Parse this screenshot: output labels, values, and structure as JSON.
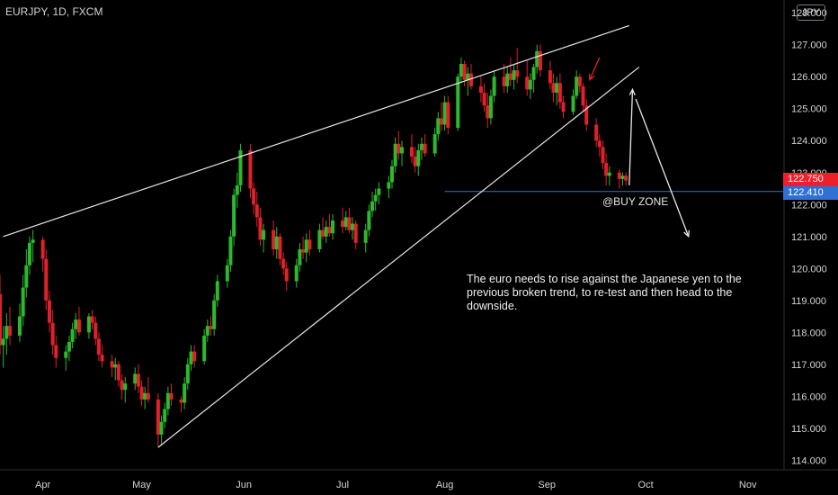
{
  "header": {
    "symbol_title": "EURJPY, 1D, FXCM",
    "currency": "JPY"
  },
  "price_tags": {
    "last": "122.750",
    "level": "122.410"
  },
  "annotations": {
    "zone_label": "@BUY ZONE",
    "note": "The euro needs to rise against the Japanese yen to the previous broken trend, to re-test and then head to the downside."
  },
  "colors": {
    "up": "#2db82d",
    "down": "#e0202a",
    "line": "#e8e8e8",
    "level": "#3a6fd8",
    "background": "#000000"
  },
  "chart_data": {
    "type": "candlestick",
    "ylim": [
      113.7,
      128.4
    ],
    "y_ticks": [
      "114.000",
      "115.000",
      "116.000",
      "117.000",
      "118.000",
      "119.000",
      "120.000",
      "121.000",
      "122.000",
      "123.000",
      "124.000",
      "125.000",
      "126.000",
      "127.000",
      "128.000"
    ],
    "x_ticks": [
      "Apr",
      "May",
      "Jun",
      "Jul",
      "Aug",
      "Sep",
      "Oct",
      "Nov"
    ],
    "x_range": [
      "2019-03-19",
      "2019-11-12"
    ],
    "horizontal_level": 122.41,
    "trendlines": [
      {
        "name": "upper",
        "from": [
          "2019-03-20",
          121.0
        ],
        "to": [
          "2019-09-26",
          127.6
        ]
      },
      {
        "name": "lower",
        "from": [
          "2019-05-06",
          114.4
        ],
        "to": [
          "2019-09-29",
          126.3
        ]
      },
      {
        "name": "level",
        "from": [
          "2019-08-01",
          122.41
        ],
        "to": [
          "2019-11-12",
          122.41
        ]
      }
    ],
    "arrows": [
      {
        "name": "small-red",
        "from": [
          "2019-09-17",
          126.6
        ],
        "to": [
          "2019-09-14",
          125.9
        ]
      },
      {
        "name": "up",
        "from": [
          "2019-09-26",
          122.6
        ],
        "to": [
          "2019-09-27",
          125.6
        ]
      },
      {
        "name": "down",
        "from": [
          "2019-09-28",
          125.3
        ],
        "to": [
          "2019-10-14",
          121.0
        ]
      }
    ],
    "candles": [
      [
        "2019-03-18",
        117.5,
        119.7,
        116.8,
        119.2
      ],
      [
        "2019-03-19",
        119.2,
        119.8,
        117.3,
        117.6
      ],
      [
        "2019-03-20",
        117.6,
        118.2,
        116.9,
        117.8
      ],
      [
        "2019-03-21",
        117.8,
        118.6,
        117.3,
        118.2
      ],
      [
        "2019-03-22",
        118.2,
        118.8,
        117.6,
        117.9
      ],
      [
        "2019-03-25",
        117.9,
        118.9,
        117.7,
        118.5
      ],
      [
        "2019-03-26",
        118.5,
        119.8,
        118.2,
        119.4
      ],
      [
        "2019-03-27",
        119.4,
        120.6,
        119.1,
        120.1
      ],
      [
        "2019-03-28",
        120.1,
        121.0,
        119.8,
        120.8
      ],
      [
        "2019-03-29",
        120.8,
        121.2,
        120.2,
        120.9
      ],
      [
        "2019-04-01",
        120.9,
        121.0,
        119.9,
        120.3
      ],
      [
        "2019-04-02",
        120.3,
        120.6,
        118.7,
        119.0
      ],
      [
        "2019-04-03",
        119.0,
        119.3,
        118.0,
        118.3
      ],
      [
        "2019-04-04",
        118.3,
        118.7,
        117.3,
        117.6
      ],
      [
        "2019-04-05",
        117.6,
        117.9,
        116.9,
        117.2
      ],
      [
        "2019-04-08",
        117.2,
        117.6,
        116.8,
        117.4
      ],
      [
        "2019-04-09",
        117.4,
        117.9,
        117.1,
        117.7
      ],
      [
        "2019-04-10",
        117.7,
        118.3,
        117.5,
        118.1
      ],
      [
        "2019-04-11",
        118.1,
        118.6,
        117.8,
        118.4
      ],
      [
        "2019-04-12",
        118.4,
        118.8,
        117.9,
        118.0
      ],
      [
        "2019-04-15",
        118.0,
        118.6,
        117.8,
        118.5
      ],
      [
        "2019-04-16",
        118.5,
        118.7,
        118.1,
        118.3
      ],
      [
        "2019-04-17",
        118.3,
        118.5,
        117.6,
        117.8
      ],
      [
        "2019-04-18",
        117.8,
        118.0,
        117.1,
        117.3
      ],
      [
        "2019-04-19",
        117.3,
        117.6,
        116.9,
        117.1
      ],
      [
        "2019-04-22",
        117.1,
        117.3,
        116.6,
        116.9
      ],
      [
        "2019-04-23",
        116.9,
        117.2,
        116.5,
        117.0
      ],
      [
        "2019-04-24",
        117.0,
        117.1,
        116.3,
        116.5
      ],
      [
        "2019-04-25",
        116.5,
        116.7,
        115.9,
        116.2
      ],
      [
        "2019-04-26",
        116.2,
        116.6,
        115.8,
        116.4
      ],
      [
        "2019-04-29",
        116.4,
        116.9,
        116.2,
        116.7
      ],
      [
        "2019-04-30",
        116.7,
        117.0,
        116.1,
        116.3
      ],
      [
        "2019-05-01",
        116.3,
        116.5,
        115.7,
        115.9
      ],
      [
        "2019-05-02",
        115.9,
        116.3,
        115.6,
        116.1
      ],
      [
        "2019-05-03",
        116.1,
        116.6,
        115.8,
        115.9
      ],
      [
        "2019-05-06",
        115.9,
        116.1,
        114.4,
        114.8
      ],
      [
        "2019-05-07",
        114.8,
        115.4,
        114.5,
        115.2
      ],
      [
        "2019-05-08",
        115.2,
        115.8,
        115.0,
        115.6
      ],
      [
        "2019-05-09",
        115.6,
        116.3,
        115.4,
        116.1
      ],
      [
        "2019-05-10",
        116.1,
        116.4,
        115.7,
        115.9
      ],
      [
        "2019-05-13",
        115.9,
        116.0,
        115.5,
        115.8
      ],
      [
        "2019-05-14",
        115.8,
        116.6,
        115.6,
        116.4
      ],
      [
        "2019-05-15",
        116.4,
        117.2,
        116.2,
        117.0
      ],
      [
        "2019-05-16",
        117.0,
        117.6,
        116.8,
        117.4
      ],
      [
        "2019-05-17",
        117.4,
        117.6,
        116.9,
        117.1
      ],
      [
        "2019-05-20",
        117.1,
        118.1,
        117.0,
        117.9
      ],
      [
        "2019-05-21",
        117.9,
        118.4,
        117.7,
        118.2
      ],
      [
        "2019-05-22",
        118.2,
        118.5,
        117.9,
        118.1
      ],
      [
        "2019-05-23",
        118.1,
        119.2,
        117.9,
        119.0
      ],
      [
        "2019-05-24",
        119.0,
        119.8,
        118.8,
        119.6
      ],
      [
        "2019-05-27",
        119.6,
        120.3,
        119.4,
        120.1
      ],
      [
        "2019-05-28",
        120.1,
        121.2,
        119.9,
        121.0
      ],
      [
        "2019-05-29",
        121.0,
        122.5,
        120.7,
        122.3
      ],
      [
        "2019-05-30",
        122.3,
        123.0,
        121.9,
        122.6
      ],
      [
        "2019-05-31",
        122.6,
        123.9,
        122.4,
        123.7
      ],
      [
        "2019-06-03",
        123.7,
        123.9,
        122.2,
        122.5
      ],
      [
        "2019-06-04",
        122.5,
        122.7,
        121.7,
        122.0
      ],
      [
        "2019-06-05",
        122.0,
        122.4,
        121.3,
        121.6
      ],
      [
        "2019-06-06",
        121.6,
        121.9,
        120.7,
        120.9
      ],
      [
        "2019-06-07",
        120.9,
        121.4,
        120.5,
        121.2
      ],
      [
        "2019-06-10",
        121.2,
        121.5,
        120.4,
        120.6
      ],
      [
        "2019-06-11",
        120.6,
        121.3,
        120.3,
        121.0
      ],
      [
        "2019-06-12",
        121.0,
        121.1,
        120.1,
        120.3
      ],
      [
        "2019-06-13",
        120.3,
        120.5,
        119.8,
        120.0
      ],
      [
        "2019-06-14",
        120.0,
        120.2,
        119.3,
        119.6
      ],
      [
        "2019-06-17",
        119.6,
        120.3,
        119.4,
        120.1
      ],
      [
        "2019-06-18",
        120.1,
        120.8,
        119.9,
        120.6
      ],
      [
        "2019-06-19",
        120.6,
        121.0,
        120.3,
        120.5
      ],
      [
        "2019-06-20",
        120.5,
        121.1,
        120.2,
        120.9
      ],
      [
        "2019-06-21",
        120.9,
        121.2,
        120.4,
        120.6
      ],
      [
        "2019-06-24",
        120.6,
        121.4,
        120.5,
        121.2
      ],
      [
        "2019-06-25",
        121.2,
        121.6,
        120.9,
        121.0
      ],
      [
        "2019-06-26",
        121.0,
        121.5,
        120.8,
        121.3
      ],
      [
        "2019-06-27",
        121.3,
        121.7,
        121.0,
        121.1
      ],
      [
        "2019-06-28",
        121.1,
        121.7,
        120.9,
        121.5
      ],
      [
        "2019-07-01",
        121.5,
        121.9,
        121.1,
        121.3
      ],
      [
        "2019-07-02",
        121.3,
        121.8,
        121.2,
        121.6
      ],
      [
        "2019-07-03",
        121.6,
        121.9,
        121.1,
        121.2
      ],
      [
        "2019-07-04",
        121.2,
        121.6,
        120.9,
        121.4
      ],
      [
        "2019-07-05",
        121.4,
        121.5,
        120.6,
        120.8
      ],
      [
        "2019-07-08",
        120.8,
        121.4,
        120.5,
        121.2
      ],
      [
        "2019-07-09",
        121.2,
        122.0,
        121.0,
        121.8
      ],
      [
        "2019-07-10",
        121.8,
        122.4,
        121.6,
        122.1
      ],
      [
        "2019-07-11",
        122.1,
        122.5,
        121.8,
        122.3
      ],
      [
        "2019-07-12",
        122.3,
        122.7,
        122.0,
        122.5
      ],
      [
        "2019-07-15",
        122.5,
        122.9,
        122.2,
        122.7
      ],
      [
        "2019-07-16",
        122.7,
        123.4,
        122.5,
        123.2
      ],
      [
        "2019-07-17",
        123.2,
        124.1,
        123.0,
        123.9
      ],
      [
        "2019-07-18",
        123.9,
        124.3,
        123.4,
        123.6
      ],
      [
        "2019-07-19",
        123.6,
        124.0,
        123.2,
        123.8
      ],
      [
        "2019-07-22",
        123.8,
        124.2,
        123.3,
        123.5
      ],
      [
        "2019-07-23",
        123.5,
        123.8,
        123.0,
        123.2
      ],
      [
        "2019-07-24",
        123.2,
        123.9,
        122.9,
        123.7
      ],
      [
        "2019-07-25",
        123.7,
        124.1,
        123.4,
        123.9
      ],
      [
        "2019-07-26",
        123.9,
        124.2,
        123.5,
        123.6
      ],
      [
        "2019-07-29",
        123.6,
        124.4,
        123.5,
        124.2
      ],
      [
        "2019-07-30",
        124.2,
        124.9,
        124.0,
        124.7
      ],
      [
        "2019-07-31",
        124.7,
        125.2,
        124.3,
        124.5
      ],
      [
        "2019-08-01",
        124.5,
        125.4,
        124.3,
        125.2
      ],
      [
        "2019-08-02",
        125.2,
        125.4,
        124.2,
        124.4
      ],
      [
        "2019-08-05",
        124.4,
        126.1,
        124.3,
        126.0
      ],
      [
        "2019-08-06",
        126.0,
        126.6,
        125.8,
        126.4
      ],
      [
        "2019-08-07",
        126.4,
        126.5,
        125.7,
        125.9
      ],
      [
        "2019-08-08",
        125.9,
        126.3,
        125.4,
        126.1
      ],
      [
        "2019-08-09",
        126.1,
        126.4,
        125.6,
        125.7
      ],
      [
        "2019-08-12",
        125.7,
        126.0,
        125.2,
        125.5
      ],
      [
        "2019-08-13",
        125.5,
        125.8,
        124.9,
        125.1
      ],
      [
        "2019-08-14",
        125.1,
        125.5,
        124.4,
        124.7
      ],
      [
        "2019-08-15",
        124.7,
        125.6,
        124.5,
        125.4
      ],
      [
        "2019-08-16",
        125.4,
        126.2,
        125.2,
        126.0
      ],
      [
        "2019-08-19",
        126.0,
        126.4,
        125.5,
        125.7
      ],
      [
        "2019-08-20",
        125.7,
        126.3,
        125.5,
        126.1
      ],
      [
        "2019-08-21",
        126.1,
        126.6,
        125.7,
        125.9
      ],
      [
        "2019-08-22",
        125.9,
        126.4,
        125.6,
        126.2
      ],
      [
        "2019-08-23",
        126.2,
        126.9,
        125.8,
        126.0
      ],
      [
        "2019-08-26",
        126.0,
        126.5,
        125.4,
        125.6
      ],
      [
        "2019-08-27",
        125.6,
        126.1,
        125.3,
        125.9
      ],
      [
        "2019-08-28",
        125.9,
        126.4,
        125.5,
        126.3
      ],
      [
        "2019-08-29",
        126.3,
        127.0,
        126.1,
        126.8
      ],
      [
        "2019-08-30",
        126.8,
        127.0,
        126.0,
        126.2
      ],
      [
        "2019-09-02",
        126.2,
        126.5,
        125.6,
        125.8
      ],
      [
        "2019-09-03",
        125.8,
        126.1,
        125.2,
        125.5
      ],
      [
        "2019-09-04",
        125.5,
        126.0,
        125.1,
        125.8
      ],
      [
        "2019-09-05",
        125.8,
        126.1,
        125.0,
        125.2
      ],
      [
        "2019-09-06",
        125.2,
        125.4,
        124.7,
        124.9
      ],
      [
        "2019-09-09",
        124.9,
        125.6,
        124.8,
        125.4
      ],
      [
        "2019-09-10",
        125.4,
        126.2,
        125.3,
        126.0
      ],
      [
        "2019-09-11",
        126.0,
        126.1,
        125.5,
        125.7
      ],
      [
        "2019-09-12",
        125.7,
        125.8,
        124.9,
        125.1
      ],
      [
        "2019-09-13",
        125.1,
        125.3,
        124.3,
        124.5
      ],
      [
        "2019-09-16",
        124.5,
        124.7,
        123.8,
        124.0
      ],
      [
        "2019-09-17",
        124.0,
        124.2,
        123.5,
        123.8
      ],
      [
        "2019-09-18",
        123.8,
        124.0,
        123.1,
        123.3
      ],
      [
        "2019-09-19",
        123.3,
        123.6,
        122.6,
        122.9
      ],
      [
        "2019-09-20",
        122.9,
        123.2,
        122.6,
        123.0
      ],
      [
        "2019-09-23",
        123.0,
        123.1,
        122.5,
        122.8
      ],
      [
        "2019-09-24",
        122.8,
        123.0,
        122.6,
        122.9
      ],
      [
        "2019-09-25",
        122.9,
        123.0,
        122.6,
        122.75
      ]
    ]
  }
}
